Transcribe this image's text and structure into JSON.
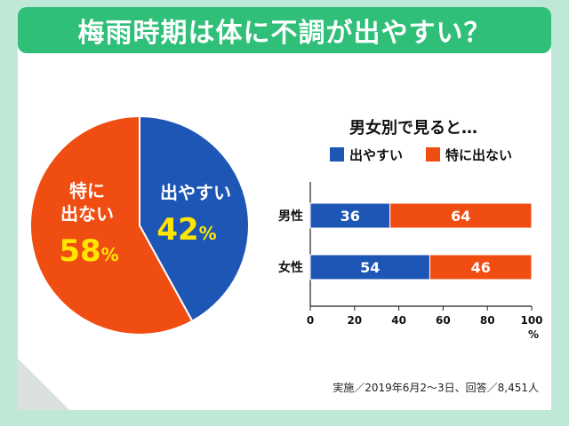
{
  "title": "梅雨時期は体に不調が出やすい？",
  "footnote": "実施／2019年6月2〜3日、回答／8,451人",
  "colors": {
    "header_green": "#2fbf78",
    "blue": "#1e56b5",
    "orange": "#f04d12",
    "label_yellow": "#ffe600"
  },
  "chart_data": [
    {
      "type": "pie",
      "slices": [
        {
          "label": "出やすい",
          "value": 42,
          "value_text": "42",
          "unit": "%",
          "color": "#1e56b5"
        },
        {
          "label_lines": [
            "特に",
            "出ない"
          ],
          "label": "特に出ない",
          "value": 58,
          "value_text": "58",
          "unit": "%",
          "color": "#f04d12"
        }
      ]
    },
    {
      "type": "bar",
      "orientation": "horizontal",
      "stacked": true,
      "title": "男女別で見ると…",
      "categories": [
        "男性",
        "女性"
      ],
      "series": [
        {
          "name": "出やすい",
          "values": [
            36,
            54
          ],
          "color": "#1e56b5"
        },
        {
          "name": "特に出ない",
          "values": [
            64,
            46
          ],
          "color": "#f04d12"
        }
      ],
      "xlim": [
        0,
        100
      ],
      "xticks": [
        0,
        20,
        40,
        60,
        80,
        100
      ],
      "xunit": "%"
    }
  ]
}
